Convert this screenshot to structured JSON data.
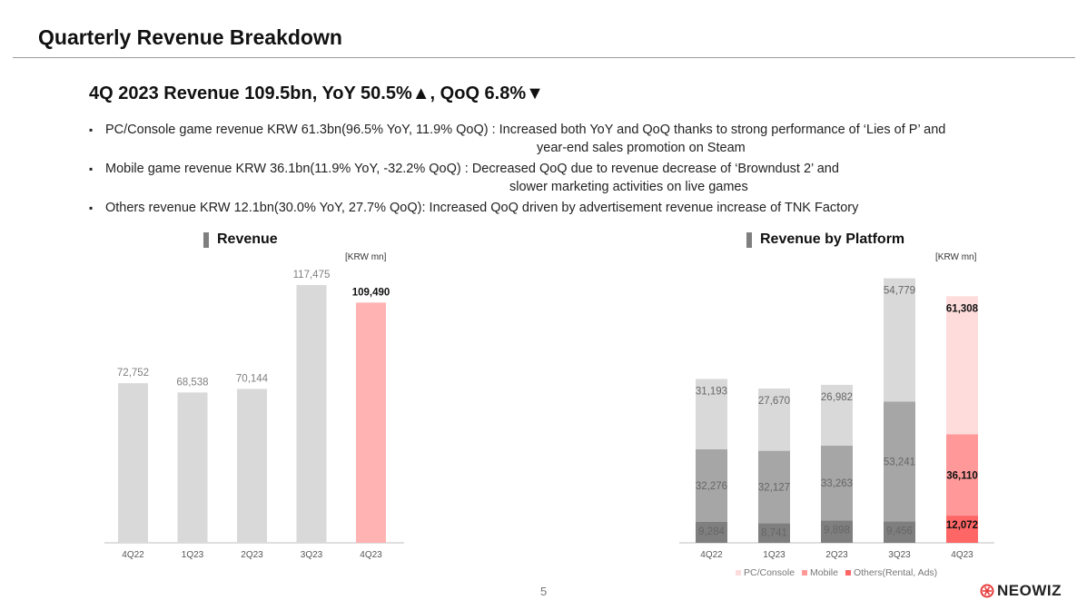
{
  "header": {
    "title": "Quarterly Revenue Breakdown"
  },
  "headline": "4Q 2023 Revenue 109.5bn, YoY 50.5%▲, QoQ 6.8%▼",
  "bullets": [
    {
      "line1": "PC/Console game revenue KRW 61.3bn(96.5% YoY, 11.9% QoQ) : Increased both YoY and QoQ thanks to strong performance of ‘Lies of P’ and",
      "line2": "year-end sales promotion on Steam"
    },
    {
      "line1": "Mobile game revenue KRW 36.1bn(11.9% YoY, -32.2% QoQ) : Decreased QoQ due to revenue decrease of ‘Browndust 2’ and",
      "line2": "slower marketing activities on live games"
    },
    {
      "line1": "Others revenue KRW 12.1bn(30.0% YoY, 27.7% QoQ): Increased QoQ driven by advertisement revenue increase of TNK Factory",
      "line2": ""
    }
  ],
  "bullet_glyph": "▪",
  "colors": {
    "bar_gray": "#d9d9d9",
    "highlight": "#ffb3b3",
    "pc_gray": "#d9d9d9",
    "mobile_gray": "#a6a6a6",
    "others_gray": "#7f7f7f",
    "pc_hl": "#ffdcdc",
    "mobile_hl": "#ff9999",
    "others_hl": "#ff6666"
  },
  "chart_data": [
    {
      "type": "bar",
      "title": "Revenue",
      "unit": "[KRW mn]",
      "categories": [
        "4Q22",
        "1Q23",
        "2Q23",
        "3Q23",
        "4Q23"
      ],
      "values": [
        72752,
        68538,
        70144,
        117475,
        109490
      ],
      "labels": [
        "72,752",
        "68,538",
        "70,144",
        "117,475",
        "109,490"
      ],
      "highlight_index": 4
    },
    {
      "type": "bar",
      "stacked": true,
      "title": "Revenue by Platform",
      "unit": "[KRW mn]",
      "categories": [
        "4Q22",
        "1Q23",
        "2Q23",
        "3Q23",
        "4Q23"
      ],
      "series": [
        {
          "name": "Others(Rental, Ads)",
          "values": [
            9284,
            8741,
            9898,
            9456,
            12072
          ],
          "labels": [
            "9,284",
            "8,741",
            "9,898",
            "9,456",
            "12,072"
          ]
        },
        {
          "name": "Mobile",
          "values": [
            32276,
            32127,
            33263,
            53241,
            36110
          ],
          "labels": [
            "32,276",
            "32,127",
            "33,263",
            "53,241",
            "36,110"
          ]
        },
        {
          "name": "PC/Console",
          "values": [
            31193,
            27670,
            26982,
            54779,
            61308
          ],
          "labels": [
            "31,193",
            "27,670",
            "26,982",
            "54,779",
            "61,308"
          ]
        }
      ],
      "highlight_index": 4,
      "legend": [
        "PC/Console",
        "Mobile",
        "Others(Rental, Ads)"
      ],
      "legend_position": "bottom"
    }
  ],
  "page_number": "5",
  "logo_text": "NEOWIZ"
}
